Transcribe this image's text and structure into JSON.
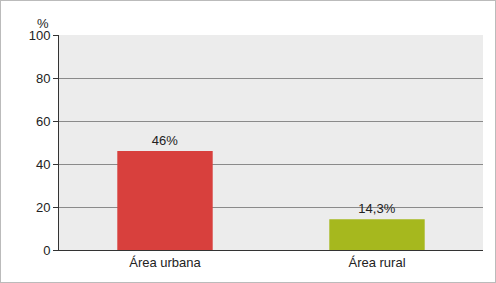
{
  "chart_data": {
    "type": "bar",
    "ylabel": "%",
    "categories": [
      "Área urbana",
      "Área rural"
    ],
    "values": [
      46,
      14.3
    ],
    "value_labels": [
      "46%",
      "14,3%"
    ],
    "colors": [
      "#d8403d",
      "#a6b81e"
    ],
    "ylim": [
      0,
      100
    ],
    "yticks": [
      0,
      20,
      40,
      60,
      80,
      100
    ],
    "grid": true,
    "data_labels": true
  }
}
